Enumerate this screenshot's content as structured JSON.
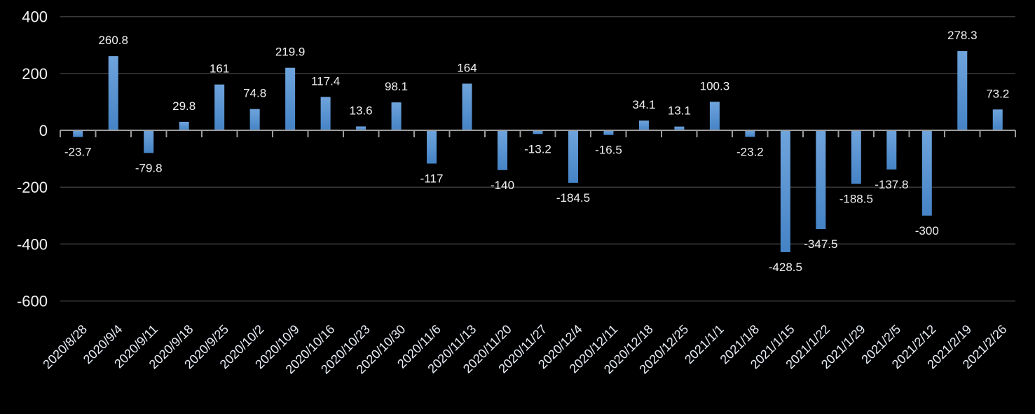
{
  "chart_data": {
    "type": "bar",
    "title": "",
    "xlabel": "",
    "ylabel": "",
    "categories": [
      "2020/8/28",
      "2020/9/4",
      "2020/9/11",
      "2020/9/18",
      "2020/9/25",
      "2020/10/2",
      "2020/10/9",
      "2020/10/16",
      "2020/10/23",
      "2020/10/30",
      "2020/11/6",
      "2020/11/13",
      "2020/11/20",
      "2020/11/27",
      "2020/12/4",
      "2020/12/11",
      "2020/12/18",
      "2020/12/25",
      "2021/1/1",
      "2021/1/8",
      "2021/1/15",
      "2021/1/22",
      "2021/1/29",
      "2021/2/5",
      "2021/2/12",
      "2021/2/19",
      "2021/2/26"
    ],
    "values": [
      -23.7,
      260.8,
      -79.8,
      29.8,
      161,
      74.8,
      219.9,
      117.4,
      13.6,
      98.1,
      -117,
      164,
      -140,
      -13.2,
      -184.5,
      -16.5,
      34.1,
      13.1,
      100.3,
      -23.2,
      -428.5,
      -347.5,
      -188.5,
      -137.8,
      -300,
      278.3,
      73.2
    ],
    "ylim": [
      -600,
      400
    ],
    "yticks": [
      400,
      200,
      0,
      -200,
      -400,
      -600
    ],
    "gridline_values": [
      400,
      200,
      -200,
      -400,
      -600
    ],
    "grid": true,
    "data_labels": true,
    "legend_position": "none",
    "category_label_rotation_deg": -45,
    "colors": {
      "background": "#000000",
      "bar_gradient_top": "#6FA4DC",
      "bar_gradient_bottom": "#4583C6",
      "axis_line": "#9C9C9C",
      "gridline": "#383838",
      "data_label_text": "#F2F2F2",
      "axis_tick_label_text": "#F2F2F2",
      "category_label_text": "#E9EFF7"
    }
  }
}
